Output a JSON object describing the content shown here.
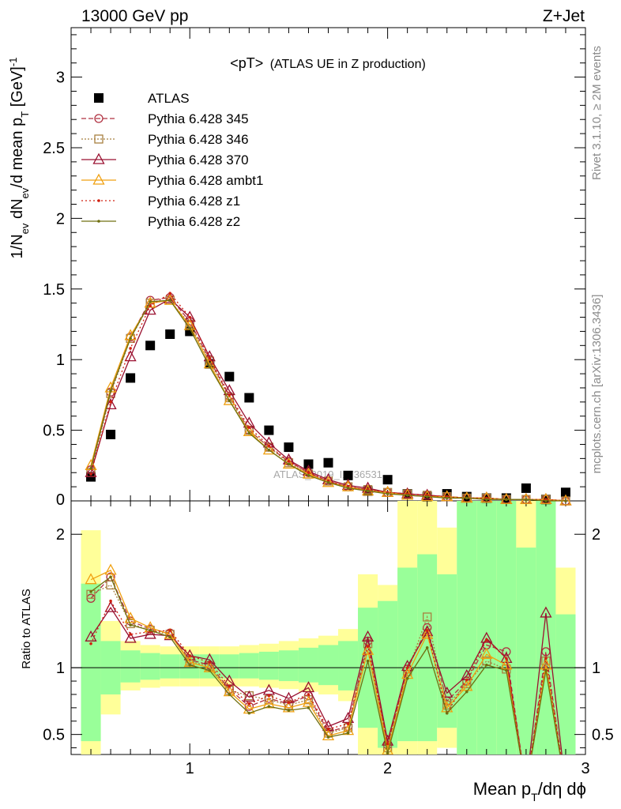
{
  "header": {
    "left": "13000 GeV pp",
    "right": "Z+Jet"
  },
  "side_labels": {
    "rivet": "Rivet 3.1.10, ≥ 2M events",
    "mcplots": "mcplots.cern.ch [arXiv:1306.3436]"
  },
  "chart_data": [
    {
      "type": "scatter",
      "panel": "main",
      "title_main": "<pT>",
      "title_sub": "(ATLAS UE in Z production)",
      "watermark": "ATLAS_2019_I1736531",
      "xlabel": "Mean p_T/dη dϕ",
      "ylabel": "1/N_ev dN_ev/d mean p_T [GeV]^-1",
      "xlim": [
        0.4,
        3.0
      ],
      "ylim": [
        0,
        3.35
      ],
      "y_ticks": [
        0.5,
        1,
        1.5,
        2,
        2.5,
        3
      ],
      "y_tick_labels": [
        "0.5",
        "1",
        "1.5",
        "2",
        "2.5",
        "3"
      ],
      "bottom_tick_label": "0",
      "x": [
        0.5,
        0.6,
        0.7,
        0.8,
        0.9,
        1.0,
        1.1,
        1.2,
        1.3,
        1.4,
        1.5,
        1.6,
        1.7,
        1.8,
        1.9,
        2.0,
        2.1,
        2.2,
        2.3,
        2.4,
        2.5,
        2.6,
        2.7,
        2.8,
        2.9
      ],
      "series": [
        {
          "name": "ATLAS",
          "color": "#000000",
          "marker": "square",
          "values": [
            0.17,
            0.47,
            0.87,
            1.1,
            1.18,
            1.2,
            0.97,
            0.88,
            0.73,
            0.5,
            0.38,
            0.26,
            0.27,
            0.18,
            0.07,
            0.15,
            0.05,
            0.03,
            0.05,
            0.03,
            0.02,
            0.02,
            0.09,
            0.01,
            0.06
          ]
        },
        {
          "name": "Pythia 6.428 345",
          "color": "#b03040",
          "dash": "6,3",
          "marker": "circle",
          "values": [
            0.22,
            0.77,
            1.16,
            1.42,
            1.44,
            1.27,
            1.0,
            0.74,
            0.5,
            0.38,
            0.28,
            0.2,
            0.14,
            0.1,
            0.08,
            0.06,
            0.05,
            0.04,
            0.03,
            0.02,
            0.02,
            0.01,
            0.01,
            0.01,
            0.0
          ]
        },
        {
          "name": "Pythia 6.428 346",
          "color": "#a88040",
          "dash": "2,2",
          "marker": "square-open",
          "values": [
            0.2,
            0.76,
            1.15,
            1.4,
            1.42,
            1.25,
            0.99,
            0.73,
            0.5,
            0.38,
            0.27,
            0.19,
            0.14,
            0.1,
            0.08,
            0.06,
            0.05,
            0.04,
            0.03,
            0.02,
            0.02,
            0.01,
            0.01,
            0.01,
            0.0
          ]
        },
        {
          "name": "Pythia 6.428 370",
          "color": "#9a1030",
          "dash": "",
          "marker": "triangle",
          "values": [
            0.2,
            0.68,
            1.02,
            1.35,
            1.43,
            1.3,
            1.02,
            0.78,
            0.55,
            0.41,
            0.29,
            0.21,
            0.15,
            0.11,
            0.09,
            0.06,
            0.05,
            0.04,
            0.03,
            0.02,
            0.02,
            0.01,
            0.01,
            0.01,
            0.0
          ]
        },
        {
          "name": "Pythia 6.428 ambt1",
          "color": "#f0a010",
          "dash": "",
          "marker": "triangle",
          "values": [
            0.25,
            0.8,
            1.17,
            1.4,
            1.42,
            1.24,
            0.97,
            0.71,
            0.49,
            0.36,
            0.26,
            0.19,
            0.13,
            0.1,
            0.07,
            0.06,
            0.04,
            0.03,
            0.03,
            0.02,
            0.02,
            0.01,
            0.01,
            0.01,
            0.0
          ]
        },
        {
          "name": "Pythia 6.428 z1",
          "color": "#d02010",
          "dash": "2,3",
          "marker": "dot",
          "values": [
            0.19,
            0.7,
            1.08,
            1.38,
            1.47,
            1.3,
            1.01,
            0.75,
            0.52,
            0.39,
            0.28,
            0.2,
            0.14,
            0.1,
            0.08,
            0.06,
            0.05,
            0.04,
            0.03,
            0.02,
            0.02,
            0.01,
            0.01,
            0.01,
            0.0
          ]
        },
        {
          "name": "Pythia 6.428 z2",
          "color": "#707010",
          "dash": "",
          "marker": "dot",
          "values": [
            0.23,
            0.78,
            1.15,
            1.41,
            1.42,
            1.22,
            0.95,
            0.71,
            0.48,
            0.36,
            0.26,
            0.18,
            0.13,
            0.09,
            0.07,
            0.05,
            0.04,
            0.03,
            0.02,
            0.02,
            0.01,
            0.01,
            0.01,
            0.0,
            0.0
          ]
        }
      ]
    },
    {
      "type": "line",
      "panel": "ratio",
      "ylabel": "Ratio to ATLAS",
      "x_tick_labels": [
        "1",
        "2",
        "3"
      ],
      "x_ticks": [
        1,
        2,
        3
      ],
      "xlim": [
        0.4,
        3.0
      ],
      "ylim": [
        0.35,
        2.25
      ],
      "y_ticks": [
        0.5,
        1,
        2
      ],
      "y_tick_labels": [
        "0.5",
        "1",
        "2"
      ],
      "bin_edges": [
        0.45,
        0.55,
        0.65,
        0.75,
        0.85,
        0.95,
        1.05,
        1.15,
        1.25,
        1.35,
        1.45,
        1.55,
        1.65,
        1.75,
        1.85,
        1.95,
        2.05,
        2.15,
        2.25,
        2.35,
        2.45,
        2.55,
        2.65,
        2.75,
        2.85,
        2.95
      ],
      "band_yellow_lo": [
        0.35,
        0.65,
        0.83,
        0.85,
        0.86,
        0.86,
        0.86,
        0.86,
        0.86,
        0.85,
        0.84,
        0.82,
        0.8,
        0.75,
        0.35,
        0.35,
        0.35,
        0.35,
        0.4,
        0.35,
        0.35,
        0.35,
        0.35,
        0.35,
        0.35
      ],
      "band_yellow_hi": [
        2.03,
        1.35,
        1.2,
        1.17,
        1.16,
        1.16,
        1.16,
        1.16,
        1.17,
        1.18,
        1.2,
        1.22,
        1.24,
        1.29,
        1.7,
        1.62,
        2.25,
        2.25,
        2.05,
        2.25,
        2.25,
        2.25,
        2.25,
        2.25,
        1.75
      ],
      "band_green_lo": [
        0.45,
        0.8,
        0.89,
        0.91,
        0.92,
        0.92,
        0.92,
        0.92,
        0.92,
        0.91,
        0.9,
        0.89,
        0.87,
        0.83,
        0.55,
        0.4,
        0.45,
        0.45,
        0.55,
        0.35,
        0.35,
        0.35,
        0.35,
        0.35,
        0.35
      ],
      "band_green_hi": [
        1.63,
        1.2,
        1.13,
        1.11,
        1.1,
        1.1,
        1.1,
        1.1,
        1.11,
        1.12,
        1.13,
        1.15,
        1.17,
        1.2,
        1.45,
        1.5,
        1.75,
        1.85,
        1.7,
        2.25,
        2.25,
        2.25,
        1.9,
        2.25,
        1.4
      ],
      "reference_line": 1,
      "x": [
        0.5,
        0.6,
        0.7,
        0.8,
        0.9,
        1.0,
        1.1,
        1.2,
        1.3,
        1.4,
        1.5,
        1.6,
        1.7,
        1.8,
        1.9,
        2.0,
        2.1,
        2.2,
        2.3,
        2.4,
        2.5,
        2.6,
        2.7,
        2.8,
        2.9
      ],
      "series": [
        {
          "name": "Pythia 6.428 345",
          "color": "#b03040",
          "dash": "6,3",
          "marker": "circle",
          "values": [
            1.52,
            1.68,
            1.35,
            1.29,
            1.26,
            1.06,
            1.02,
            0.84,
            0.71,
            0.77,
            0.73,
            0.79,
            0.52,
            0.56,
            1.2,
            0.42,
            0.99,
            1.3,
            0.75,
            0.9,
            1.17,
            1.12,
            0.1,
            1.12,
            0.1
          ]
        },
        {
          "name": "Pythia 6.428 346",
          "color": "#a88040",
          "dash": "2,2",
          "marker": "square-open",
          "values": [
            1.55,
            1.62,
            1.33,
            1.28,
            1.25,
            1.05,
            1.01,
            0.83,
            0.79,
            0.76,
            0.72,
            0.76,
            0.51,
            0.55,
            1.18,
            0.4,
            0.97,
            1.38,
            0.72,
            0.88,
            1.05,
            0.99,
            0.1,
            1.05,
            0.1
          ]
        },
        {
          "name": "Pythia 6.428 370",
          "color": "#9a1030",
          "dash": "",
          "marker": "triangle",
          "values": [
            1.23,
            1.45,
            1.22,
            1.25,
            1.24,
            1.09,
            1.06,
            0.9,
            0.78,
            0.83,
            0.77,
            0.85,
            0.56,
            0.62,
            1.23,
            0.45,
            1.01,
            1.27,
            0.81,
            0.94,
            1.22,
            1.07,
            0.1,
            1.41,
            0.1
          ]
        },
        {
          "name": "Pythia 6.428 ambt1",
          "color": "#f0a010",
          "dash": "",
          "marker": "triangle",
          "values": [
            1.66,
            1.73,
            1.37,
            1.3,
            1.25,
            1.04,
            1.0,
            0.82,
            0.69,
            0.73,
            0.7,
            0.74,
            0.49,
            0.53,
            1.13,
            0.38,
            0.95,
            1.25,
            0.7,
            0.86,
            1.1,
            1.02,
            0.1,
            1.02,
            0.1
          ]
        },
        {
          "name": "Pythia 6.428 z1",
          "color": "#d02010",
          "dash": "2,3",
          "marker": "dot",
          "values": [
            1.18,
            1.5,
            1.25,
            1.27,
            1.28,
            1.09,
            1.04,
            0.86,
            0.73,
            0.79,
            0.74,
            0.8,
            0.54,
            0.58,
            1.16,
            0.43,
            1.0,
            1.28,
            0.66,
            0.91,
            1.21,
            1.07,
            0.1,
            1.07,
            0.1
          ]
        },
        {
          "name": "Pythia 6.428 z2",
          "color": "#707010",
          "dash": "",
          "marker": "dot",
          "values": [
            1.57,
            1.68,
            1.32,
            1.28,
            1.23,
            1.02,
            0.98,
            0.8,
            0.66,
            0.71,
            0.68,
            0.7,
            0.48,
            0.51,
            1.05,
            0.36,
            0.92,
            1.15,
            0.66,
            0.82,
            1.02,
            0.98,
            0.1,
            0.98,
            0.1
          ]
        }
      ]
    }
  ]
}
